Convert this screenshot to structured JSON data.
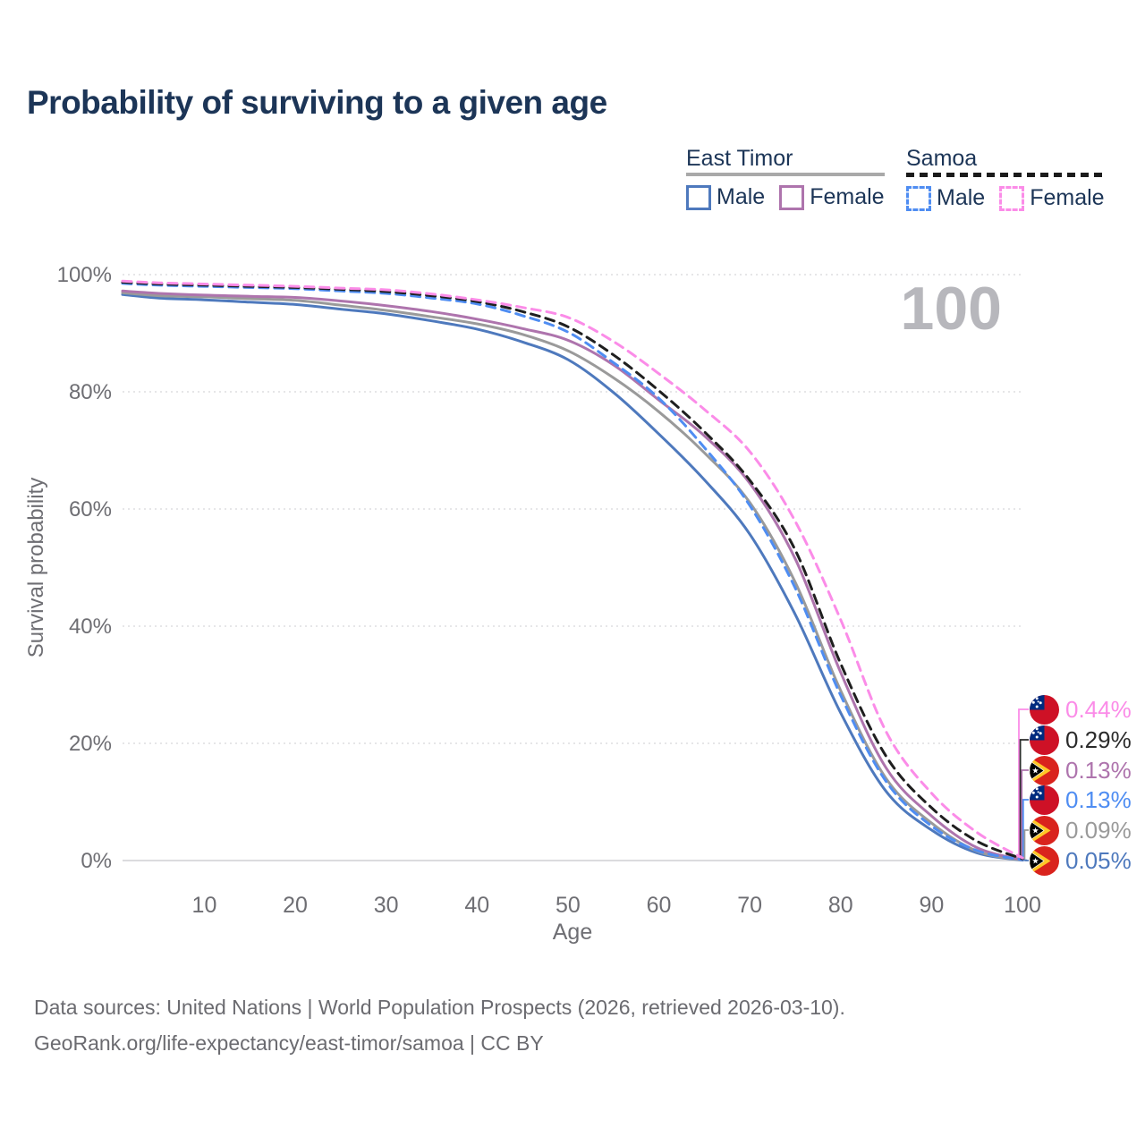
{
  "page_title": "Probability of surviving to a given age",
  "watermark_label": "100",
  "legend": {
    "groups": [
      {
        "label": "East Timor",
        "line_style": "solid",
        "line_color": "#a9a9a9",
        "items": [
          {
            "label": "Male",
            "color": "#4e79bd"
          },
          {
            "label": "Female",
            "color": "#ae74ad"
          }
        ]
      },
      {
        "label": "Samoa",
        "line_style": "dashed",
        "line_color": "#1b1b1b",
        "items": [
          {
            "label": "Male",
            "color": "#4f8df2"
          },
          {
            "label": "Female",
            "color": "#fb8ce8"
          }
        ]
      }
    ]
  },
  "chart_data": {
    "type": "line",
    "title": "Probability of surviving to a given age",
    "xlabel": "Age",
    "ylabel": "Survival probability",
    "xlim": [
      1,
      100
    ],
    "ylim": [
      0,
      100
    ],
    "grid": "horizontal-dotted",
    "legend_position": "top-right",
    "x_ticks": [
      10,
      20,
      30,
      40,
      50,
      60,
      70,
      80,
      90,
      100
    ],
    "y_ticks": [
      {
        "value": 0,
        "label": "0%"
      },
      {
        "value": 20,
        "label": "20%"
      },
      {
        "value": 40,
        "label": "40%"
      },
      {
        "value": 60,
        "label": "60%"
      },
      {
        "value": 80,
        "label": "80%"
      },
      {
        "value": 100,
        "label": "100%"
      }
    ],
    "x": [
      1,
      5,
      10,
      15,
      20,
      25,
      30,
      35,
      40,
      45,
      50,
      55,
      60,
      65,
      70,
      75,
      80,
      85,
      90,
      95,
      100
    ],
    "series": [
      {
        "id": "east-timor-male",
        "name": "East Timor Male",
        "color": "#4e79bd",
        "dash": false,
        "values": [
          96.6,
          96.0,
          95.7,
          95.3,
          94.9,
          94.1,
          93.3,
          92.1,
          90.7,
          88.5,
          85.5,
          79.9,
          72.8,
          65.0,
          55.7,
          42.0,
          25.2,
          11.8,
          5.2,
          1.3,
          0.05
        ]
      },
      {
        "id": "east-timor-all",
        "name": "East Timor",
        "color": "#9a9a9a",
        "dash": false,
        "values": [
          96.9,
          96.4,
          96.2,
          95.9,
          95.6,
          94.8,
          93.9,
          92.8,
          91.6,
          89.8,
          87.0,
          82.4,
          76.6,
          69.6,
          61.1,
          47.5,
          29.0,
          14.0,
          6.4,
          1.6,
          0.09
        ]
      },
      {
        "id": "east-timor-female",
        "name": "East Timor Female",
        "color": "#ae74ad",
        "dash": false,
        "values": [
          97.2,
          96.8,
          96.5,
          96.3,
          96.1,
          95.5,
          94.7,
          93.7,
          92.4,
          90.8,
          88.8,
          84.6,
          78.6,
          72.5,
          64.4,
          51.5,
          32.1,
          15.8,
          7.6,
          2.2,
          0.13
        ]
      },
      {
        "id": "samoa-male",
        "name": "Samoa Male",
        "color": "#4f8df2",
        "dash": true,
        "values": [
          98.5,
          98.2,
          98.0,
          97.8,
          97.6,
          97.2,
          96.8,
          96.0,
          95.0,
          93.0,
          90.2,
          85.0,
          78.9,
          70.5,
          60.6,
          46.5,
          28.2,
          13.5,
          5.9,
          1.7,
          0.13
        ]
      },
      {
        "id": "samoa-all",
        "name": "Samoa",
        "color": "#1f1f1f",
        "dash": true,
        "values": [
          98.7,
          98.4,
          98.2,
          98.0,
          97.8,
          97.5,
          97.1,
          96.4,
          95.4,
          93.7,
          91.1,
          86.3,
          80.2,
          73.2,
          64.9,
          53.0,
          33.6,
          17.8,
          9.0,
          3.3,
          0.29
        ]
      },
      {
        "id": "samoa-female",
        "name": "Samoa Female",
        "color": "#fb8ce8",
        "dash": true,
        "values": [
          98.9,
          98.6,
          98.4,
          98.2,
          98.0,
          97.7,
          97.4,
          96.7,
          95.7,
          94.4,
          92.7,
          88.6,
          83.1,
          77.0,
          69.8,
          57.9,
          41.1,
          22.0,
          11.5,
          4.8,
          0.44
        ]
      }
    ],
    "end_labels": [
      {
        "series_id": "samoa-female",
        "label": "0.44%",
        "color": "#fb8ce8",
        "flag": "samoa"
      },
      {
        "series_id": "samoa-all",
        "label": "0.29%",
        "color": "#2b2b2b",
        "flag": "samoa"
      },
      {
        "series_id": "east-timor-female",
        "label": "0.13%",
        "color": "#ae74ad",
        "flag": "east-timor"
      },
      {
        "series_id": "samoa-male",
        "label": "0.13%",
        "color": "#4f8df2",
        "flag": "samoa"
      },
      {
        "series_id": "east-timor-all",
        "label": "0.09%",
        "color": "#9a9a9a",
        "flag": "east-timor"
      },
      {
        "series_id": "east-timor-male",
        "label": "0.05%",
        "color": "#4e79bd",
        "flag": "east-timor"
      }
    ]
  },
  "footer": {
    "line1": "Data sources: United Nations | World Population Prospects (2026, retrieved 2026-03-10).",
    "line2": "GeoRank.org/life-expectancy/east-timor/samoa | CC BY"
  }
}
